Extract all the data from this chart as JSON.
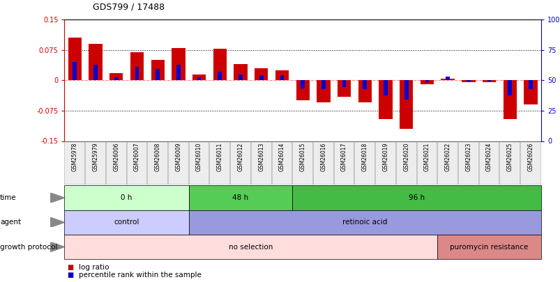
{
  "title": "GDS799 / 17488",
  "samples": [
    "GSM25978",
    "GSM25979",
    "GSM26006",
    "GSM26007",
    "GSM26008",
    "GSM26009",
    "GSM26010",
    "GSM26011",
    "GSM26012",
    "GSM26013",
    "GSM26014",
    "GSM26015",
    "GSM26016",
    "GSM26017",
    "GSM26018",
    "GSM26019",
    "GSM26020",
    "GSM26021",
    "GSM26022",
    "GSM26023",
    "GSM26024",
    "GSM26025",
    "GSM26026"
  ],
  "log_ratio": [
    0.105,
    0.09,
    0.018,
    0.07,
    0.05,
    0.08,
    0.015,
    0.078,
    0.04,
    0.03,
    0.025,
    -0.05,
    -0.055,
    -0.04,
    -0.055,
    -0.095,
    -0.12,
    -0.01,
    0.005,
    -0.005,
    -0.005,
    -0.095,
    -0.06
  ],
  "percentile": [
    0.045,
    0.038,
    0.008,
    0.033,
    0.028,
    0.038,
    0.008,
    0.022,
    0.015,
    0.012,
    0.012,
    -0.02,
    -0.022,
    -0.016,
    -0.022,
    -0.038,
    -0.048,
    -0.004,
    0.01,
    -0.002,
    -0.002,
    -0.038,
    -0.022
  ],
  "ylim": [
    -0.15,
    0.15
  ],
  "yticks_left": [
    -0.15,
    -0.075,
    0,
    0.075,
    0.15
  ],
  "yticks_right": [
    0,
    25,
    50,
    75,
    100
  ],
  "ytick_labels_left": [
    "-0.15",
    "-0.075",
    "0",
    "0.075",
    "0.15"
  ],
  "ytick_labels_right": [
    "0",
    "25",
    "50",
    "75",
    "100%"
  ],
  "dotted_lines": [
    -0.075,
    0.075
  ],
  "zero_line_color": "#ff8888",
  "bar_red": "#cc0000",
  "bar_blue": "#0000cc",
  "time_groups": [
    {
      "label": "0 h",
      "start": 0,
      "end": 6,
      "color": "#ccffcc"
    },
    {
      "label": "48 h",
      "start": 6,
      "end": 11,
      "color": "#55cc55"
    },
    {
      "label": "96 h",
      "start": 11,
      "end": 23,
      "color": "#44bb44"
    }
  ],
  "agent_groups": [
    {
      "label": "control",
      "start": 0,
      "end": 6,
      "color": "#ccccff"
    },
    {
      "label": "retinoic acid",
      "start": 6,
      "end": 23,
      "color": "#9999dd"
    }
  ],
  "growth_groups": [
    {
      "label": "no selection",
      "start": 0,
      "end": 18,
      "color": "#ffdddd"
    },
    {
      "label": "puromycin resistance",
      "start": 18,
      "end": 23,
      "color": "#dd8888"
    }
  ],
  "row_labels": [
    "time",
    "agent",
    "growth protocol"
  ],
  "legend_red": "log ratio",
  "legend_blue": "percentile rank within the sample",
  "bg_color": "#ffffff",
  "axis_color_left": "#cc0000",
  "axis_color_right": "#0000cc",
  "arrow_color": "#888888"
}
